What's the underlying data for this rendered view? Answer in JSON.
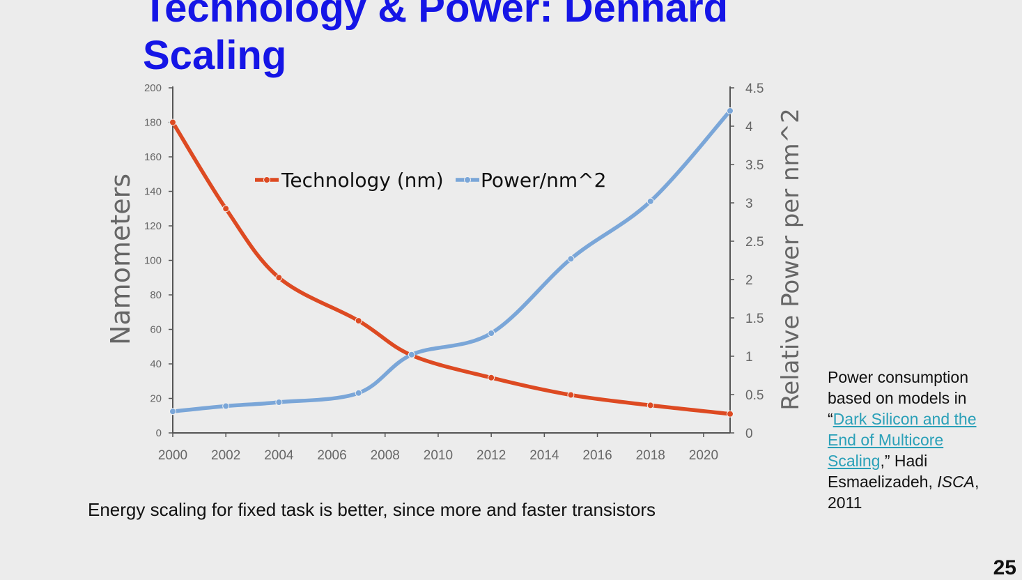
{
  "slide": {
    "title": "Technology & Power: Dennard Scaling",
    "caption": "Energy scaling for fixed task is better, since more and faster transistors",
    "citation": {
      "prefix": "Power consumption based on models in “",
      "link_text": "Dark Silicon and the End of Multicore Scaling",
      "mid": ",” Hadi Esmaelizadeh, ",
      "venue": "ISCA",
      "suffix": ", 2011"
    },
    "page_number": "25"
  },
  "chart_data": {
    "type": "line",
    "ylabel": "Namometers",
    "y2label": "Relative  Power per nm^2",
    "xlim": [
      2000,
      2021
    ],
    "ylim": [
      0,
      200
    ],
    "y2lim": [
      0,
      4.5
    ],
    "x_ticks": [
      2000,
      2002,
      2004,
      2006,
      2008,
      2010,
      2012,
      2014,
      2016,
      2018,
      2020
    ],
    "y_ticks": [
      0,
      20,
      40,
      60,
      80,
      100,
      120,
      140,
      160,
      180,
      200
    ],
    "y2_ticks": [
      0,
      0.5,
      1,
      1.5,
      2,
      2.5,
      3,
      3.5,
      4,
      4.5
    ],
    "legend_position": "top-center",
    "series": [
      {
        "name": "Technology (nm)",
        "axis": "left",
        "color": "#dd4a22",
        "x": [
          2000,
          2002,
          2004,
          2007,
          2009,
          2012,
          2015,
          2018,
          2021
        ],
        "y": [
          180,
          130,
          90,
          65,
          45,
          32,
          22,
          16,
          11
        ]
      },
      {
        "name": "Power/nm^2",
        "axis": "right",
        "color": "#7aa6d8",
        "x": [
          2000,
          2002,
          2004,
          2007,
          2009,
          2012,
          2015,
          2018,
          2021
        ],
        "y": [
          0.28,
          0.35,
          0.4,
          0.52,
          1.02,
          1.3,
          2.27,
          3.02,
          4.2
        ]
      }
    ]
  }
}
